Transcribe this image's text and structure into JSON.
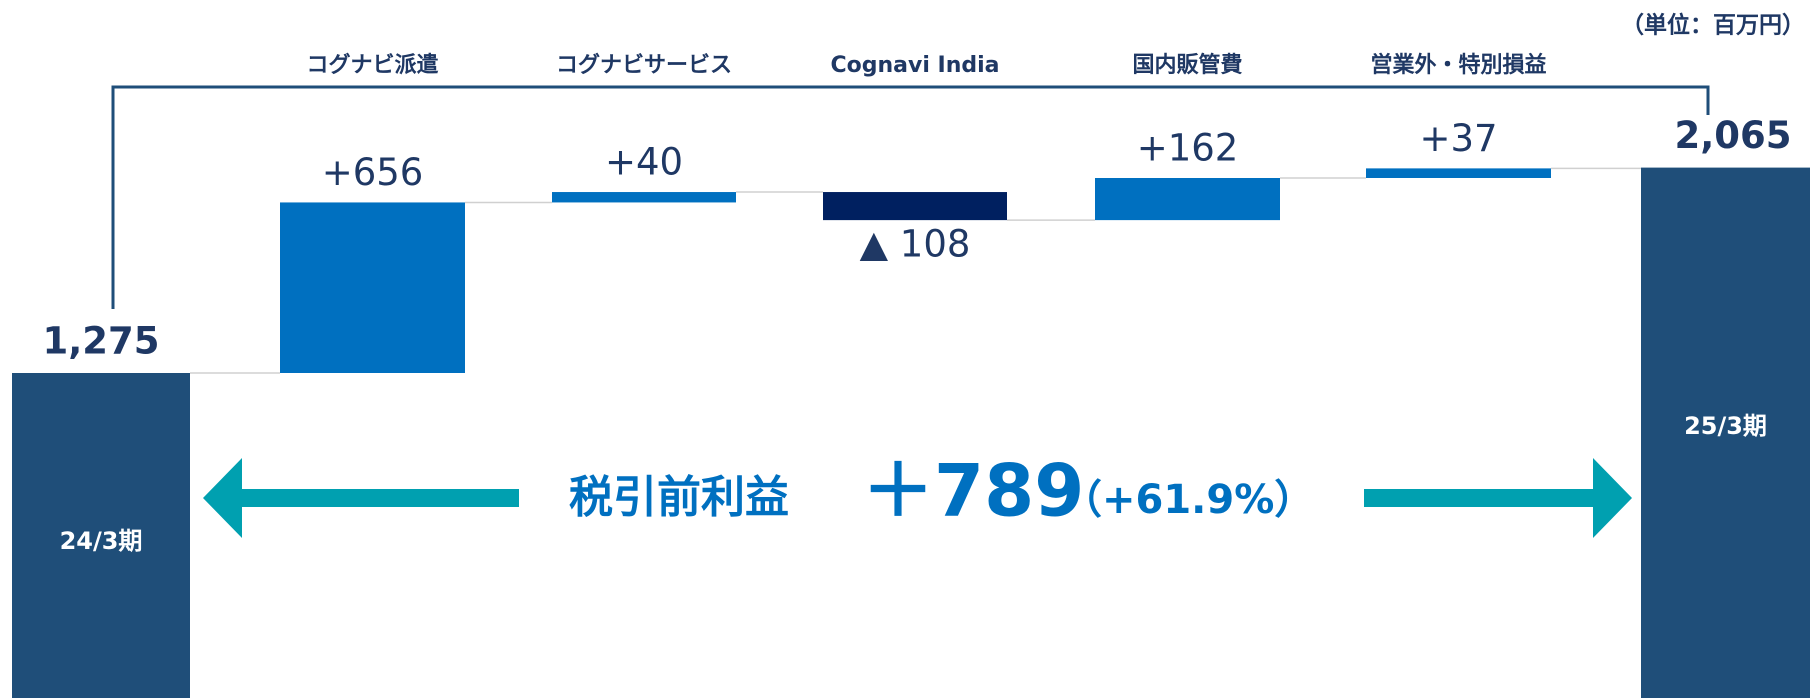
{
  "chart_data": {
    "type": "waterfall",
    "unit_label": "（単位：百万円）",
    "categories": [
      "24/3期",
      "コグナビ派遣",
      "コグナビサービス",
      "Cognavi India",
      "国内販管費",
      "営業外・特別損益",
      "25/3期"
    ],
    "measures": [
      "total",
      "relative",
      "relative",
      "relative",
      "relative",
      "relative",
      "total"
    ],
    "values": [
      1275,
      656,
      40,
      -108,
      162,
      37,
      2065
    ],
    "value_labels": [
      "1,275",
      "+656",
      "+40",
      "▲ 108",
      "+162",
      "+37",
      "2,065"
    ],
    "colors": {
      "total": "#1f4e79",
      "increase": "#0070c0",
      "decrease": "#002060"
    },
    "annotation": {
      "label": "税引前利益",
      "change": "＋789",
      "percent": "（+61.9%）"
    }
  }
}
